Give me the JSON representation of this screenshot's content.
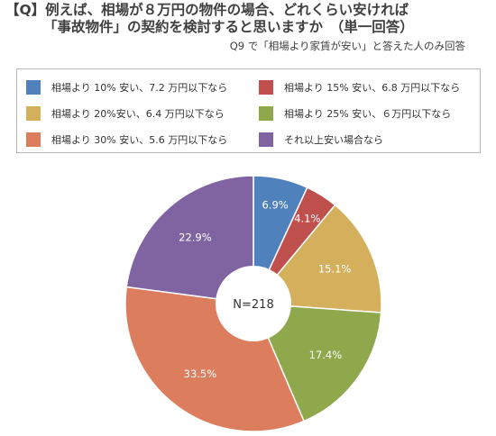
{
  "title": {
    "line1": "【Q】例えば、相場が８万円の物件の場合、どれくらい安ければ",
    "line2": "「事故物件」の契約を検討すると思いますか　（単一回答）"
  },
  "subtitle": "Q9 で「相場より家賃が安い」と答えた人のみ回答",
  "chart_data": {
    "type": "pie",
    "center_label": "N=218",
    "legend_placement": "top",
    "categories": [
      "相場より 10% 安い、7.2 万円以下なら",
      "相場より 15% 安い、6.8 万円以下なら",
      "相場より 20%安い、6.4 万円以下なら",
      "相場より 25% 安い、６万円以下なら",
      "相場より 30% 安い、5.6 万円以下なら",
      "それ以上安い場合なら"
    ],
    "values": [
      6.9,
      4.1,
      15.1,
      17.4,
      33.5,
      22.9
    ],
    "labels": [
      "6.9%",
      "4.1%",
      "15.1%",
      "17.4%",
      "33.5%",
      "22.9%"
    ],
    "colors": [
      "#4f81bd",
      "#c0504d",
      "#d4b05c",
      "#8fa84b",
      "#dc7d5e",
      "#8064a2"
    ]
  }
}
